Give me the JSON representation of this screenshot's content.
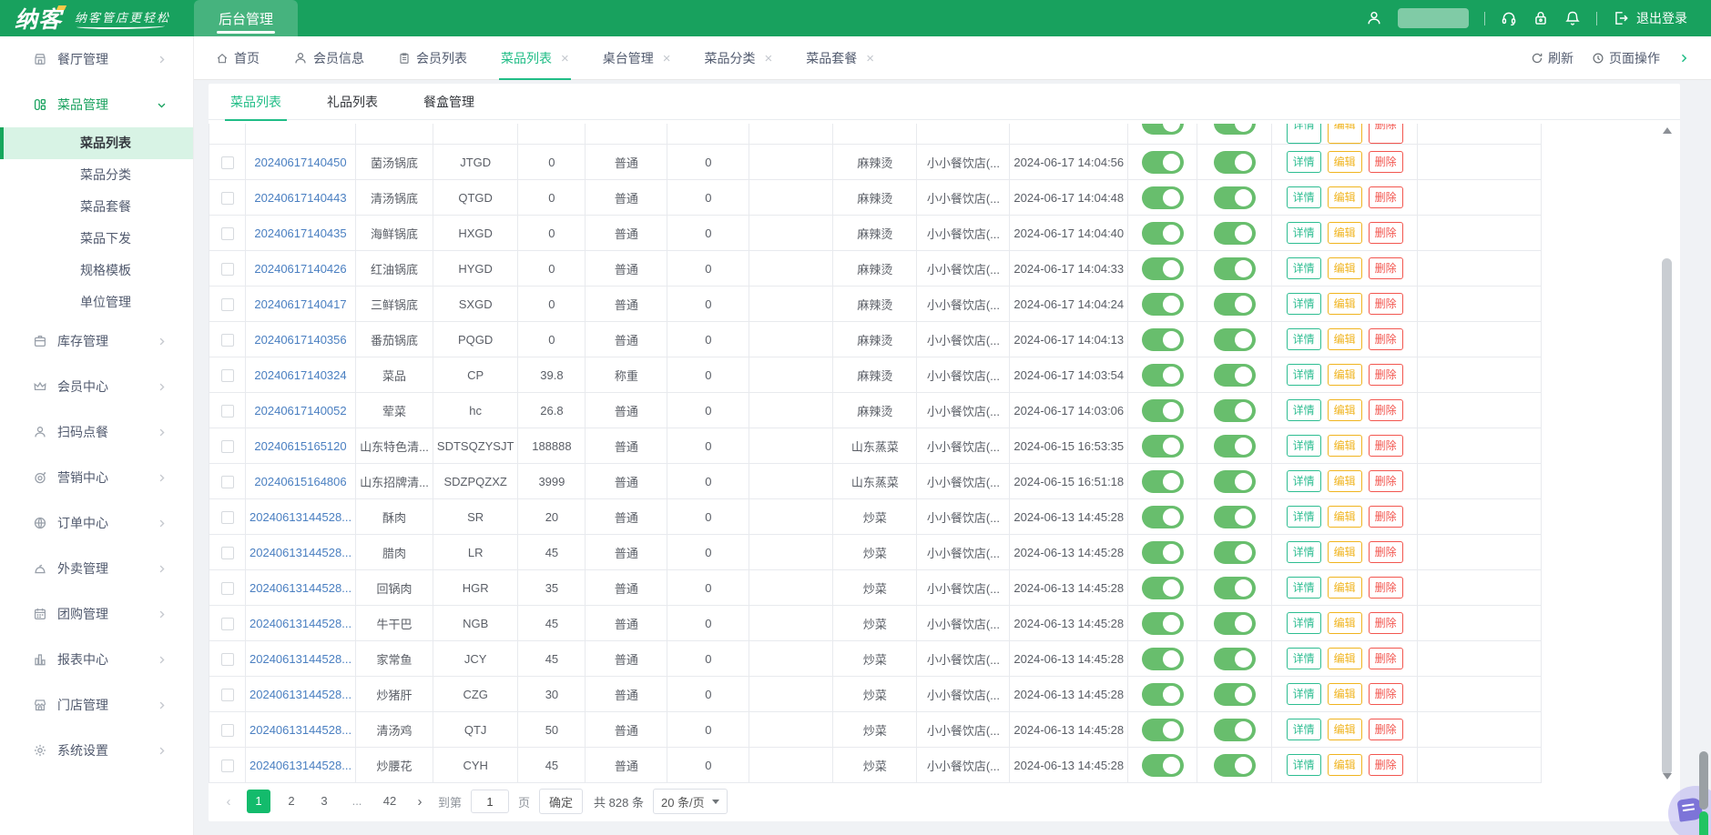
{
  "colors": {
    "header_green": "#18a15e",
    "accent_green": "#20bd86",
    "link_blue": "#4a7fc1",
    "toggle_green": "#68be6d",
    "edit_yellow": "#f0b41f",
    "delete_red": "#f2564f",
    "page_active_green": "#13bb6c"
  },
  "header": {
    "logo": "纳客",
    "slogan": "纳客管店更轻松",
    "nav_tab": "后台管理",
    "logout_label": "退出登录"
  },
  "sidebar": {
    "items": [
      {
        "label": "餐厅管理",
        "icon": "shop"
      },
      {
        "label": "菜品管理",
        "icon": "dishes",
        "expanded": true,
        "children": [
          {
            "label": "菜品列表",
            "active": true
          },
          {
            "label": "菜品分类"
          },
          {
            "label": "菜品套餐"
          },
          {
            "label": "菜品下发"
          },
          {
            "label": "规格模板"
          },
          {
            "label": "单位管理"
          }
        ]
      },
      {
        "label": "库存管理",
        "icon": "box"
      },
      {
        "label": "会员中心",
        "icon": "crown"
      },
      {
        "label": "扫码点餐",
        "icon": "user"
      },
      {
        "label": "营销中心",
        "icon": "target"
      },
      {
        "label": "订单中心",
        "icon": "globe"
      },
      {
        "label": "外卖管理",
        "icon": "cloche"
      },
      {
        "label": "团购管理",
        "icon": "calendar"
      },
      {
        "label": "报表中心",
        "icon": "chart"
      },
      {
        "label": "门店管理",
        "icon": "store"
      },
      {
        "label": "系统设置",
        "icon": "gear"
      }
    ]
  },
  "tabbar": {
    "tabs": [
      {
        "label": "首页",
        "icon": "home"
      },
      {
        "label": "会员信息",
        "icon": "user"
      },
      {
        "label": "会员列表",
        "icon": "doc"
      },
      {
        "label": "菜品列表",
        "active": true,
        "closable": true
      },
      {
        "label": "桌台管理",
        "closable": true
      },
      {
        "label": "菜品分类",
        "closable": true
      },
      {
        "label": "菜品套餐",
        "closable": true
      }
    ],
    "refresh_label": "刷新",
    "page_ops_label": "页面操作"
  },
  "subtabs": [
    {
      "label": "菜品列表",
      "active": true
    },
    {
      "label": "礼品列表"
    },
    {
      "label": "餐盒管理"
    }
  ],
  "table": {
    "actions": {
      "detail": "详情",
      "edit": "编辑",
      "delete": "删除"
    },
    "rows": [
      {
        "id": "20240617140450",
        "name": "菌汤锅底",
        "code": "JTGD",
        "price": "0",
        "type": "普通",
        "qty": "0",
        "category": "麻辣烫",
        "store": "小小餐饮店(...",
        "time": "2024-06-17 14:04:56"
      },
      {
        "id": "20240617140443",
        "name": "清汤锅底",
        "code": "QTGD",
        "price": "0",
        "type": "普通",
        "qty": "0",
        "category": "麻辣烫",
        "store": "小小餐饮店(...",
        "time": "2024-06-17 14:04:48"
      },
      {
        "id": "20240617140435",
        "name": "海鲜锅底",
        "code": "HXGD",
        "price": "0",
        "type": "普通",
        "qty": "0",
        "category": "麻辣烫",
        "store": "小小餐饮店(...",
        "time": "2024-06-17 14:04:40"
      },
      {
        "id": "20240617140426",
        "name": "红油锅底",
        "code": "HYGD",
        "price": "0",
        "type": "普通",
        "qty": "0",
        "category": "麻辣烫",
        "store": "小小餐饮店(...",
        "time": "2024-06-17 14:04:33"
      },
      {
        "id": "20240617140417",
        "name": "三鲜锅底",
        "code": "SXGD",
        "price": "0",
        "type": "普通",
        "qty": "0",
        "category": "麻辣烫",
        "store": "小小餐饮店(...",
        "time": "2024-06-17 14:04:24"
      },
      {
        "id": "20240617140356",
        "name": "番茄锅底",
        "code": "PQGD",
        "price": "0",
        "type": "普通",
        "qty": "0",
        "category": "麻辣烫",
        "store": "小小餐饮店(...",
        "time": "2024-06-17 14:04:13"
      },
      {
        "id": "20240617140324",
        "name": "菜品",
        "code": "CP",
        "price": "39.8",
        "type": "称重",
        "qty": "0",
        "category": "麻辣烫",
        "store": "小小餐饮店(...",
        "time": "2024-06-17 14:03:54"
      },
      {
        "id": "20240617140052",
        "name": "荤菜",
        "code": "hc",
        "price": "26.8",
        "type": "普通",
        "qty": "0",
        "category": "麻辣烫",
        "store": "小小餐饮店(...",
        "time": "2024-06-17 14:03:06"
      },
      {
        "id": "20240615165120",
        "name": "山东特色清...",
        "code": "SDTSQZYSJT",
        "price": "188888",
        "type": "普通",
        "qty": "0",
        "category": "山东蒸菜",
        "store": "小小餐饮店(...",
        "time": "2024-06-15 16:53:35"
      },
      {
        "id": "20240615164806",
        "name": "山东招牌清...",
        "code": "SDZPQZXZ",
        "price": "3999",
        "type": "普通",
        "qty": "0",
        "category": "山东蒸菜",
        "store": "小小餐饮店(...",
        "time": "2024-06-15 16:51:18"
      },
      {
        "id": "20240613144528...",
        "name": "酥肉",
        "code": "SR",
        "price": "20",
        "type": "普通",
        "qty": "0",
        "category": "炒菜",
        "store": "小小餐饮店(...",
        "time": "2024-06-13 14:45:28"
      },
      {
        "id": "20240613144528...",
        "name": "腊肉",
        "code": "LR",
        "price": "45",
        "type": "普通",
        "qty": "0",
        "category": "炒菜",
        "store": "小小餐饮店(...",
        "time": "2024-06-13 14:45:28"
      },
      {
        "id": "20240613144528...",
        "name": "回锅肉",
        "code": "HGR",
        "price": "35",
        "type": "普通",
        "qty": "0",
        "category": "炒菜",
        "store": "小小餐饮店(...",
        "time": "2024-06-13 14:45:28"
      },
      {
        "id": "20240613144528...",
        "name": "牛干巴",
        "code": "NGB",
        "price": "45",
        "type": "普通",
        "qty": "0",
        "category": "炒菜",
        "store": "小小餐饮店(...",
        "time": "2024-06-13 14:45:28"
      },
      {
        "id": "20240613144528...",
        "name": "家常鱼",
        "code": "JCY",
        "price": "45",
        "type": "普通",
        "qty": "0",
        "category": "炒菜",
        "store": "小小餐饮店(...",
        "time": "2024-06-13 14:45:28"
      },
      {
        "id": "20240613144528...",
        "name": "炒猪肝",
        "code": "CZG",
        "price": "30",
        "type": "普通",
        "qty": "0",
        "category": "炒菜",
        "store": "小小餐饮店(...",
        "time": "2024-06-13 14:45:28"
      },
      {
        "id": "20240613144528...",
        "name": "清汤鸡",
        "code": "QTJ",
        "price": "50",
        "type": "普通",
        "qty": "0",
        "category": "炒菜",
        "store": "小小餐饮店(...",
        "time": "2024-06-13 14:45:28"
      },
      {
        "id": "20240613144528...",
        "name": "炒腰花",
        "code": "CYH",
        "price": "45",
        "type": "普通",
        "qty": "0",
        "category": "炒菜",
        "store": "小小餐饮店(...",
        "time": "2024-06-13 14:45:28"
      }
    ]
  },
  "pagination": {
    "pages": [
      {
        "label": "1",
        "active": true
      },
      {
        "label": "2"
      },
      {
        "label": "3"
      },
      {
        "label": "...",
        "ellipsis": true
      },
      {
        "label": "42"
      }
    ],
    "goto_prefix": "到第",
    "goto_input": "1",
    "goto_suffix": "页",
    "confirm_label": "确定",
    "total_label": "共 828 条",
    "page_size_label": "20 条/页"
  }
}
